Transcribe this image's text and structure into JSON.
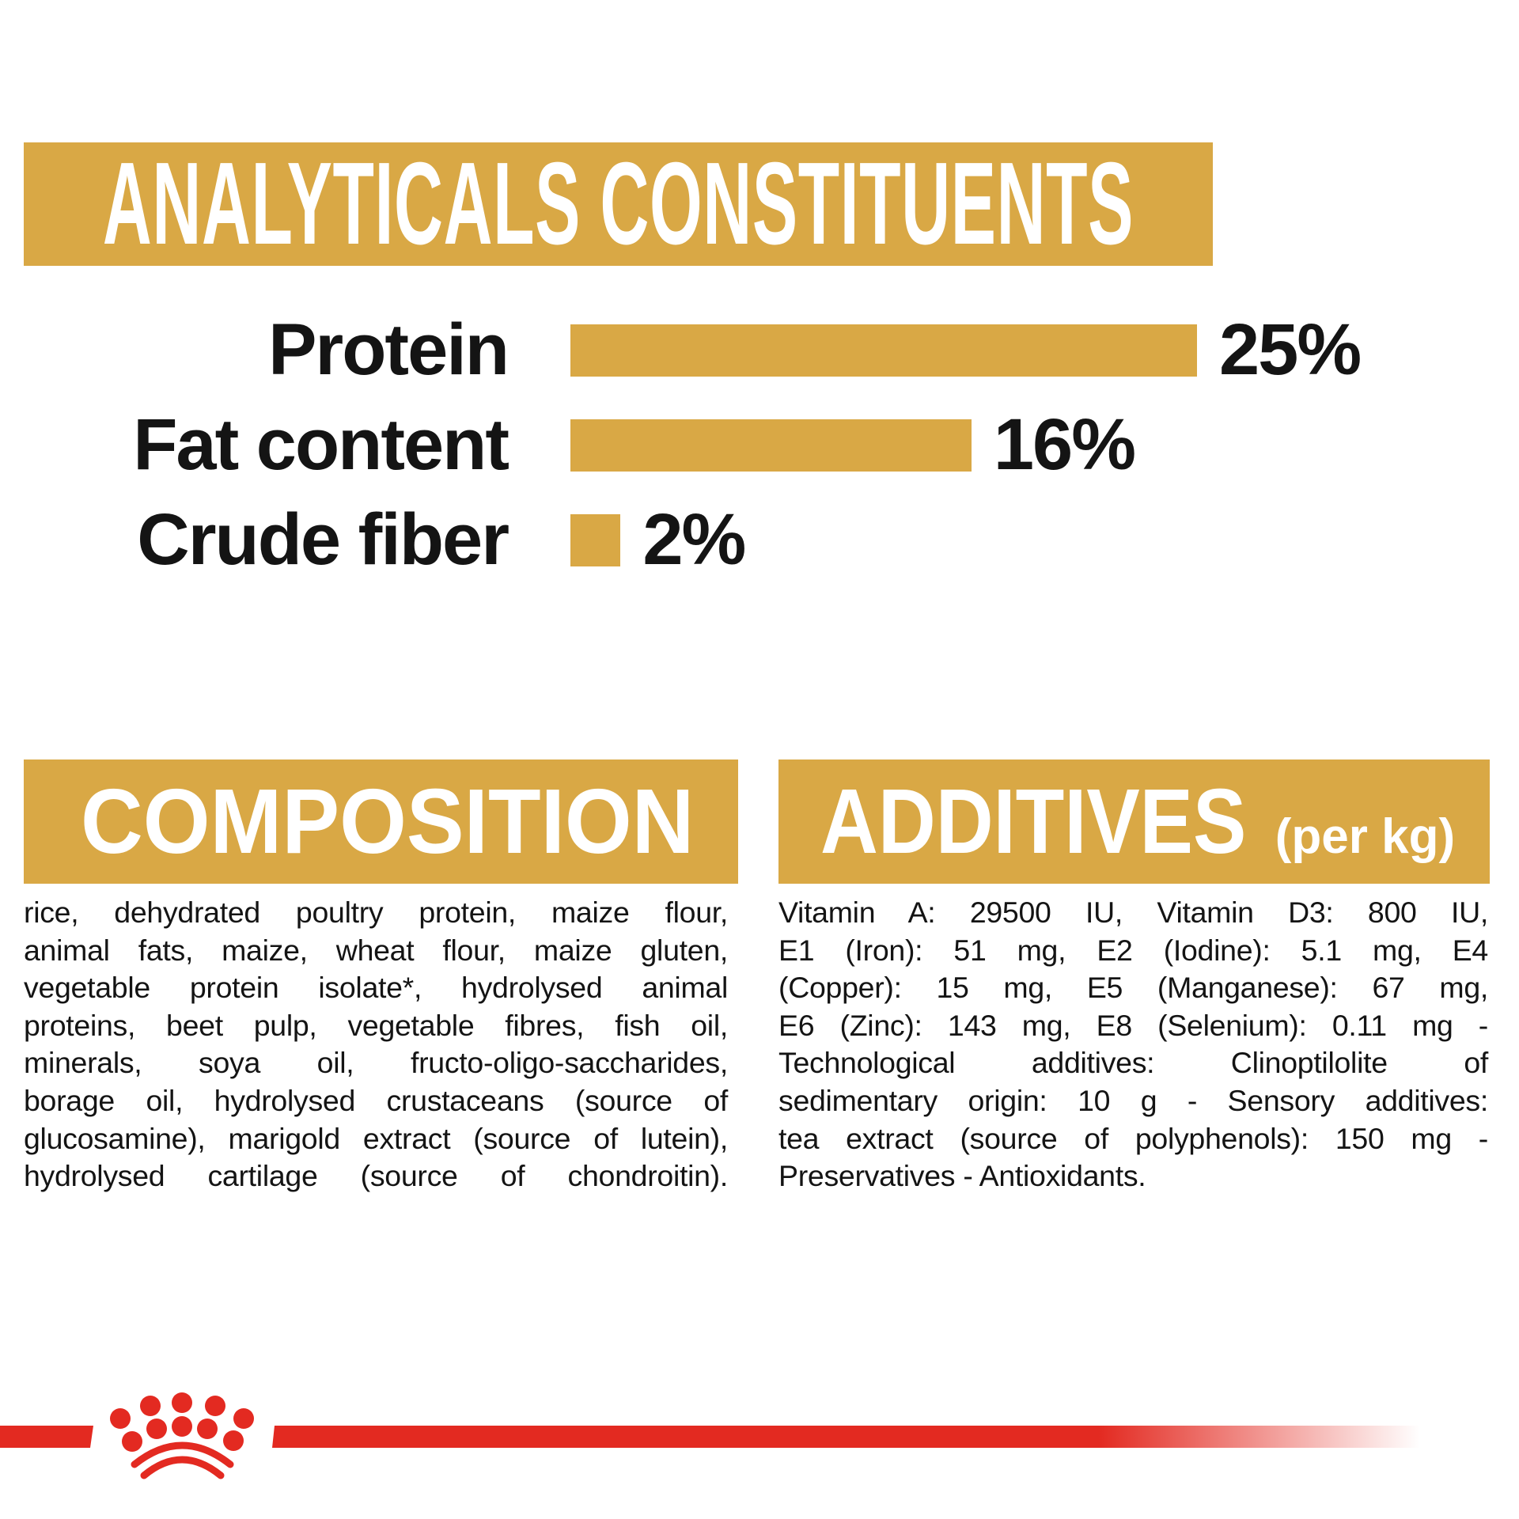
{
  "colors": {
    "gold": "#D9A845",
    "red": "#E32A21",
    "text": "#141414",
    "background": "#FFFFFF"
  },
  "chart_data": {
    "type": "bar",
    "orientation": "horizontal",
    "title": "ANALYTICALS CONSTITUENTS",
    "categories": [
      "Protein",
      "Fat content",
      "Crude fiber"
    ],
    "values": [
      25,
      16,
      2
    ],
    "unit": "%",
    "value_labels": [
      "25%",
      "16%",
      "2%"
    ],
    "xlim": [
      0,
      25
    ],
    "grid": false,
    "legend": false,
    "bar_color": "#D9A845",
    "value_label_position": "right-of-bar"
  },
  "composition": {
    "title": "COMPOSITION",
    "lines": [
      "rice, dehydrated poultry protein, maize flour,",
      "animal fats, maize, wheat flour, maize gluten,",
      "vegetable protein isolate*, hydrolysed animal",
      "proteins, beet pulp, vegetable fibres, fish oil,",
      "minerals, soya oil, fructo-oligo-saccharides,",
      "borage oil, hydrolysed crustaceans (source of",
      "glucosamine), marigold extract (source of lutein),",
      "hydrolysed cartilage (source of chondroitin)."
    ]
  },
  "additives": {
    "title": "ADDITIVES",
    "title_suffix": "(per kg)",
    "lines": [
      "Vitamin A: 29500 IU, Vitamin D3: 800 IU,",
      "E1 (Iron): 51 mg, E2 (Iodine): 5.1 mg, E4",
      "(Copper): 15 mg, E5 (Manganese): 67 mg,",
      "E6 (Zinc): 143 mg, E8 (Selenium): 0.11 mg -",
      "Technological additives: Clinoptilolite of",
      "sedimentary origin: 10 g - Sensory additives:",
      "tea extract (source of polyphenols): 150 mg -",
      "Preservatives - Antioxidants."
    ]
  },
  "footer": {
    "logo": "royal-canin-crown"
  }
}
